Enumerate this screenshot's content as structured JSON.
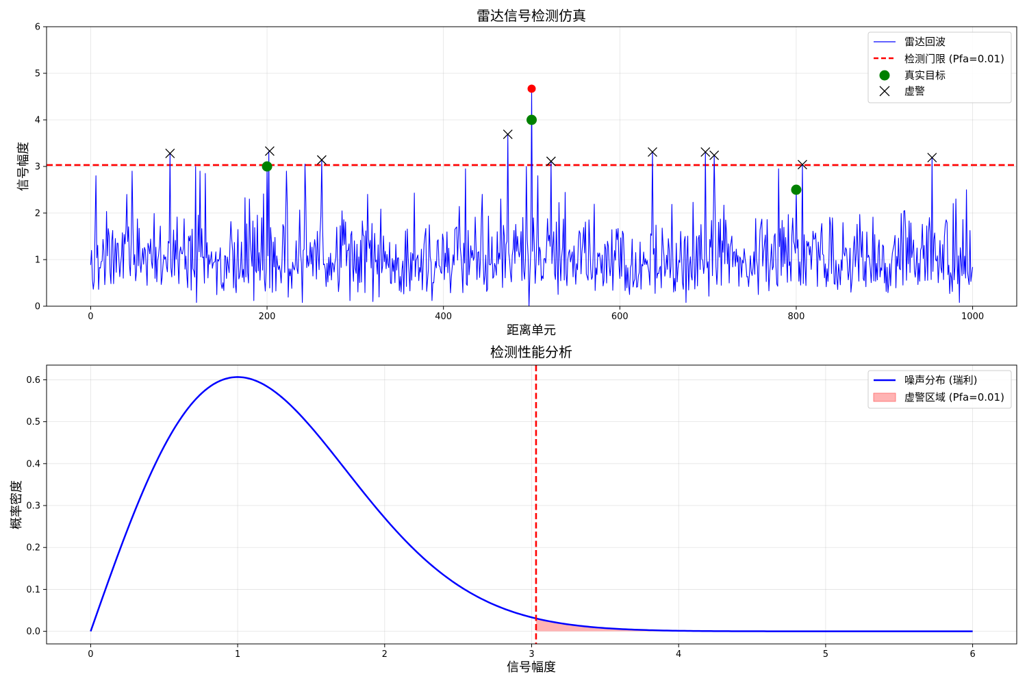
{
  "colors": {
    "echo": "#0000ff",
    "threshold": "#ff0000",
    "true_target": "#008000",
    "peak_target": "#ff0000",
    "false_alarm": "#000000",
    "pdf": "#0000ff",
    "fa_region": "#ff9999"
  },
  "chart_data": [
    {
      "type": "line",
      "title": "雷达信号检测仿真",
      "xlabel": "距离单元",
      "ylabel": "信号幅度",
      "xlim": [
        -50,
        1050
      ],
      "ylim": [
        0,
        6
      ],
      "xticks": [
        "0",
        "200",
        "400",
        "600",
        "800",
        "1000"
      ],
      "yticks": [
        "0",
        "1",
        "2",
        "3",
        "4",
        "5",
        "6"
      ],
      "grid": true,
      "legend_position": "top-right",
      "legend": [
        "雷达回波",
        "检测门限 (Pfa=0.01)",
        "真实目标",
        "虚警"
      ],
      "echo_samples": 1001,
      "echo_spikes": [
        {
          "x": 6,
          "y": 2.8
        },
        {
          "x": 41,
          "y": 2.4
        },
        {
          "x": 47,
          "y": 2.9
        },
        {
          "x": 90,
          "y": 3.28
        },
        {
          "x": 119,
          "y": 3.0
        },
        {
          "x": 124,
          "y": 2.9
        },
        {
          "x": 130,
          "y": 2.85
        },
        {
          "x": 180,
          "y": 2.3
        },
        {
          "x": 202,
          "y": 3.33
        },
        {
          "x": 222,
          "y": 2.9
        },
        {
          "x": 243,
          "y": 3.05
        },
        {
          "x": 262,
          "y": 3.14
        },
        {
          "x": 425,
          "y": 2.95
        },
        {
          "x": 473,
          "y": 3.69
        },
        {
          "x": 494,
          "y": 3.0
        },
        {
          "x": 500,
          "y": 4.67
        },
        {
          "x": 507,
          "y": 2.8
        },
        {
          "x": 522,
          "y": 3.11
        },
        {
          "x": 637,
          "y": 3.31
        },
        {
          "x": 697,
          "y": 3.31
        },
        {
          "x": 707,
          "y": 3.24
        },
        {
          "x": 780,
          "y": 2.95
        },
        {
          "x": 807,
          "y": 3.04
        },
        {
          "x": 954,
          "y": 3.19
        },
        {
          "x": 993,
          "y": 2.5
        }
      ],
      "echo_dips": [
        {
          "x": 120,
          "y": 0.08
        },
        {
          "x": 185,
          "y": 0.12
        },
        {
          "x": 240,
          "y": 0.08
        },
        {
          "x": 294,
          "y": 0.12
        },
        {
          "x": 320,
          "y": 0.1
        },
        {
          "x": 387,
          "y": 0.12
        },
        {
          "x": 497,
          "y": 0.0
        },
        {
          "x": 611,
          "y": 0.25
        },
        {
          "x": 675,
          "y": 0.08
        },
        {
          "x": 985,
          "y": 0.08
        }
      ],
      "threshold": 3.03,
      "true_targets": [
        {
          "x": 200,
          "y": 3.0
        },
        {
          "x": 500,
          "y": 4.0
        },
        {
          "x": 800,
          "y": 2.5
        }
      ],
      "peak_marker": {
        "x": 500,
        "y": 4.67
      },
      "false_alarms": [
        {
          "x": 90,
          "y": 3.28
        },
        {
          "x": 203,
          "y": 3.33
        },
        {
          "x": 262,
          "y": 3.14
        },
        {
          "x": 473,
          "y": 3.69
        },
        {
          "x": 522,
          "y": 3.11
        },
        {
          "x": 637,
          "y": 3.31
        },
        {
          "x": 697,
          "y": 3.31
        },
        {
          "x": 707,
          "y": 3.24
        },
        {
          "x": 807,
          "y": 3.04
        },
        {
          "x": 954,
          "y": 3.19
        }
      ]
    },
    {
      "type": "area",
      "title": "检测性能分析",
      "xlabel": "信号幅度",
      "ylabel": "概率密度",
      "xlim": [
        -0.3,
        6.3
      ],
      "ylim": [
        -0.03,
        0.635
      ],
      "xticks": [
        "0",
        "1",
        "2",
        "3",
        "4",
        "5",
        "6"
      ],
      "yticks": [
        "0.0",
        "0.1",
        "0.2",
        "0.3",
        "0.4",
        "0.5",
        "0.6"
      ],
      "grid": true,
      "legend_position": "top-right",
      "legend": [
        "噪声分布 (瑞利)",
        "虚警区域 (Pfa=0.01)"
      ],
      "distribution": {
        "family": "rayleigh",
        "sigma": 1.0,
        "x_range": [
          0,
          6
        ]
      },
      "threshold": 3.03
    }
  ]
}
